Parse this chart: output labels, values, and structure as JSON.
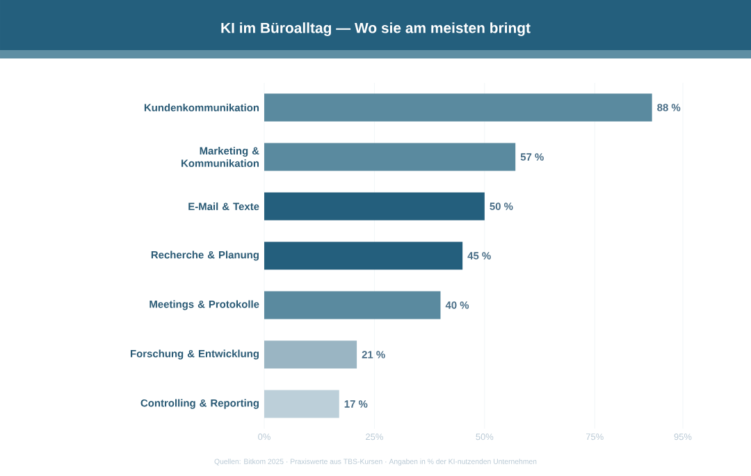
{
  "chart_data": {
    "type": "bar",
    "orientation": "horizontal",
    "title": "KI im Büroalltag — Wo sie am meisten bringt",
    "categories": [
      "Kundenkommunikation",
      "Marketing & Kommunikation",
      "E-Mail & Texte",
      "Recherche & Planung",
      "Meetings & Protokolle",
      "Forschung & Entwicklung",
      "Controlling & Reporting"
    ],
    "values": [
      88,
      57,
      50,
      45,
      40,
      21,
      17
    ],
    "colors": [
      "#5a8a9f",
      "#5a8a9f",
      "#245f7d",
      "#245f7d",
      "#5a8a9f",
      "#9ab5c3",
      "#bccfd9"
    ],
    "value_labels": [
      "88 %",
      "57 %",
      "50 %",
      "45 %",
      "40 %",
      "21 %",
      "17 %"
    ],
    "xlim": [
      0,
      95
    ],
    "xticks": [
      {
        "value": 0,
        "label": "0%"
      },
      {
        "value": 25,
        "label": "25%"
      },
      {
        "value": 50,
        "label": "50%"
      },
      {
        "value": 75,
        "label": "75%"
      },
      {
        "value": 95,
        "label": "95%"
      }
    ],
    "grid": "x",
    "annotations": [
      "Quellen: Bitkom 2025 · Praxiswerte aus TBS-Kursen · Angaben in % der KI-nutzenden Unternehmen"
    ]
  }
}
